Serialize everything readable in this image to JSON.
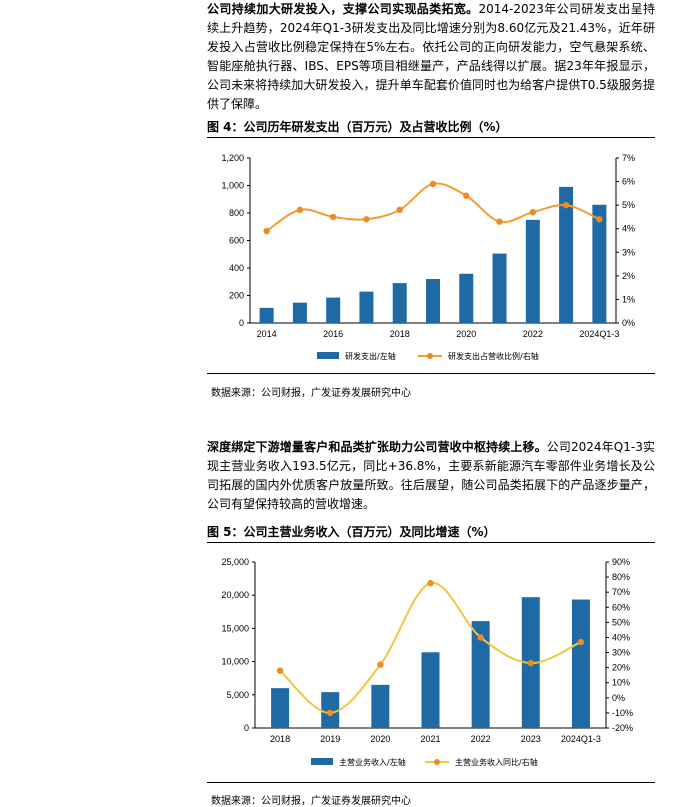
{
  "paragraph1": {
    "bold": "公司持续加大研发投入，支撑公司实现品类拓宽。",
    "text": "2014-2023年公司研发支出呈持续上升趋势，2024年Q1-3研发支出及同比增速分别为8.60亿元及21.43%，近年研发投入占营收比例稳定保持在5%左右。依托公司的正向研发能力，空气悬架系统、智能座舱执行器、IBS、EPS等项目相继量产，产品线得以扩展。据23年年报显示，公司未来将持续加大研发投入，提升单车配套价值同时也为给客户提供T0.5级服务提供了保障。"
  },
  "figure1": {
    "title": "图 4：公司历年研发支出（百万元）及占营收比例（%）",
    "source": "数据来源：公司财报，广发证券发展研究中心"
  },
  "paragraph2": {
    "bold": "深度绑定下游增量客户和品类扩张助力公司营收中枢持续上移。",
    "text": "公司2024年Q1-3实现主营业务收入193.5亿元，同比+36.8%，主要系新能源汽车零部件业务增长及公司拓展的国内外优质客户放量所致。往后展望，随公司品类拓展下的产品逐步量产，公司有望保持较高的营收增速。"
  },
  "figure2": {
    "title": "图 5：公司主营业务收入（百万元）及同比增速（%）",
    "source": "数据来源：公司财报，广发证券发展研究中心"
  },
  "chart_data": [
    {
      "type": "bar",
      "categories": [
        "2014",
        "2015",
        "2016",
        "2017",
        "2018",
        "2019",
        "2020",
        "2021",
        "2022",
        "2023",
        "2024Q1-3"
      ],
      "x_tick_labels": [
        "2014",
        "2016",
        "2018",
        "2020",
        "2022",
        "2024Q1-3"
      ],
      "series": [
        {
          "name": "研发支出/左轴",
          "kind": "bar",
          "axis": "left",
          "color": "#1f6aa5",
          "values": [
            110,
            148,
            185,
            228,
            290,
            320,
            358,
            505,
            750,
            990,
            860
          ]
        },
        {
          "name": "研发支出占营收比例/右轴",
          "kind": "line",
          "axis": "right",
          "color": "#f39c32",
          "values": [
            3.9,
            4.8,
            4.5,
            4.4,
            4.8,
            5.9,
            5.4,
            4.3,
            4.7,
            5.0,
            4.4
          ]
        }
      ],
      "ylim_left": [
        0,
        1200
      ],
      "yticks_left": [
        "0",
        "200",
        "400",
        "600",
        "800",
        "1,000",
        "1,200"
      ],
      "ylim_right": [
        0,
        7
      ],
      "yticks_right": [
        "0%",
        "1%",
        "2%",
        "3%",
        "4%",
        "5%",
        "6%",
        "7%"
      ],
      "legend_position": "bottom"
    },
    {
      "type": "bar",
      "categories": [
        "2018",
        "2019",
        "2020",
        "2021",
        "2022",
        "2023",
        "2024Q1-3"
      ],
      "x_tick_labels": [
        "2018",
        "2019",
        "2020",
        "2021",
        "2022",
        "2023",
        "2024Q1-3"
      ],
      "series": [
        {
          "name": "主营业务收入/左轴",
          "kind": "bar",
          "axis": "left",
          "color": "#1f6aa5",
          "values": [
            6000,
            5400,
            6500,
            11400,
            16100,
            19700,
            19350
          ]
        },
        {
          "name": "主营业务收入同比/右轴",
          "kind": "line",
          "axis": "right",
          "color": "#f3c542",
          "values": [
            18,
            -10,
            22,
            76,
            40,
            23,
            37
          ]
        }
      ],
      "ylim_left": [
        0,
        25000
      ],
      "yticks_left": [
        "0",
        "5,000",
        "10,000",
        "15,000",
        "20,000",
        "25,000"
      ],
      "ylim_right": [
        -20,
        90
      ],
      "yticks_right": [
        "-20%",
        "-10%",
        "0%",
        "10%",
        "20%",
        "30%",
        "40%",
        "50%",
        "60%",
        "70%",
        "80%",
        "90%"
      ],
      "legend_position": "bottom"
    }
  ]
}
